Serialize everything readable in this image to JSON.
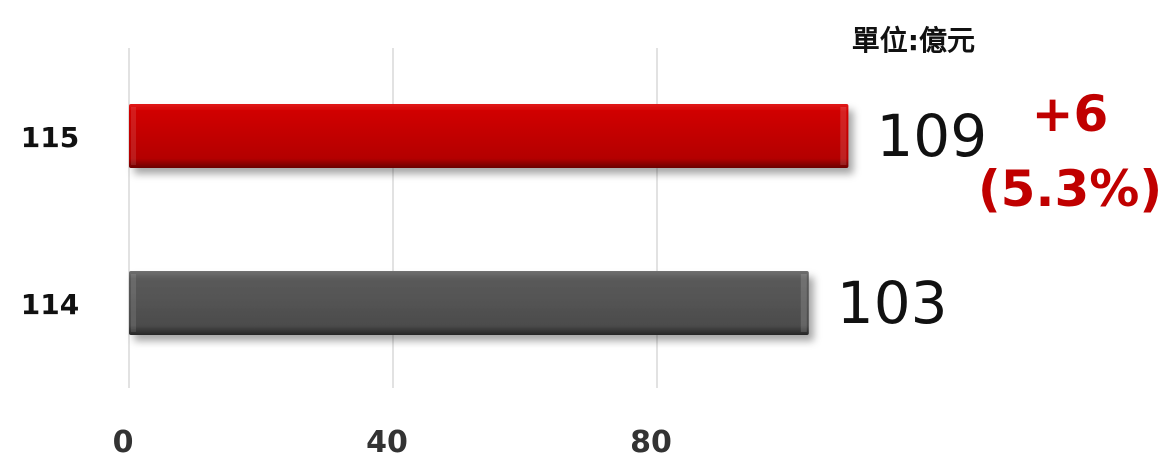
{
  "chart_data": {
    "type": "bar",
    "orientation": "horizontal",
    "unit_label": "單位:億元",
    "categories": [
      "115",
      "114"
    ],
    "values": [
      109,
      103
    ],
    "value_labels": [
      "109",
      "103"
    ],
    "bar_colors": [
      "#cc0000",
      "#555555"
    ],
    "xticks": [
      "0",
      "40",
      "80"
    ],
    "xtick_values": [
      0,
      40,
      80
    ],
    "xlim": [
      0,
      120
    ],
    "grid": true,
    "annotations": [
      {
        "category": "115",
        "lines": [
          "+6",
          "(5.3%)"
        ],
        "color": "#c00000"
      }
    ]
  }
}
